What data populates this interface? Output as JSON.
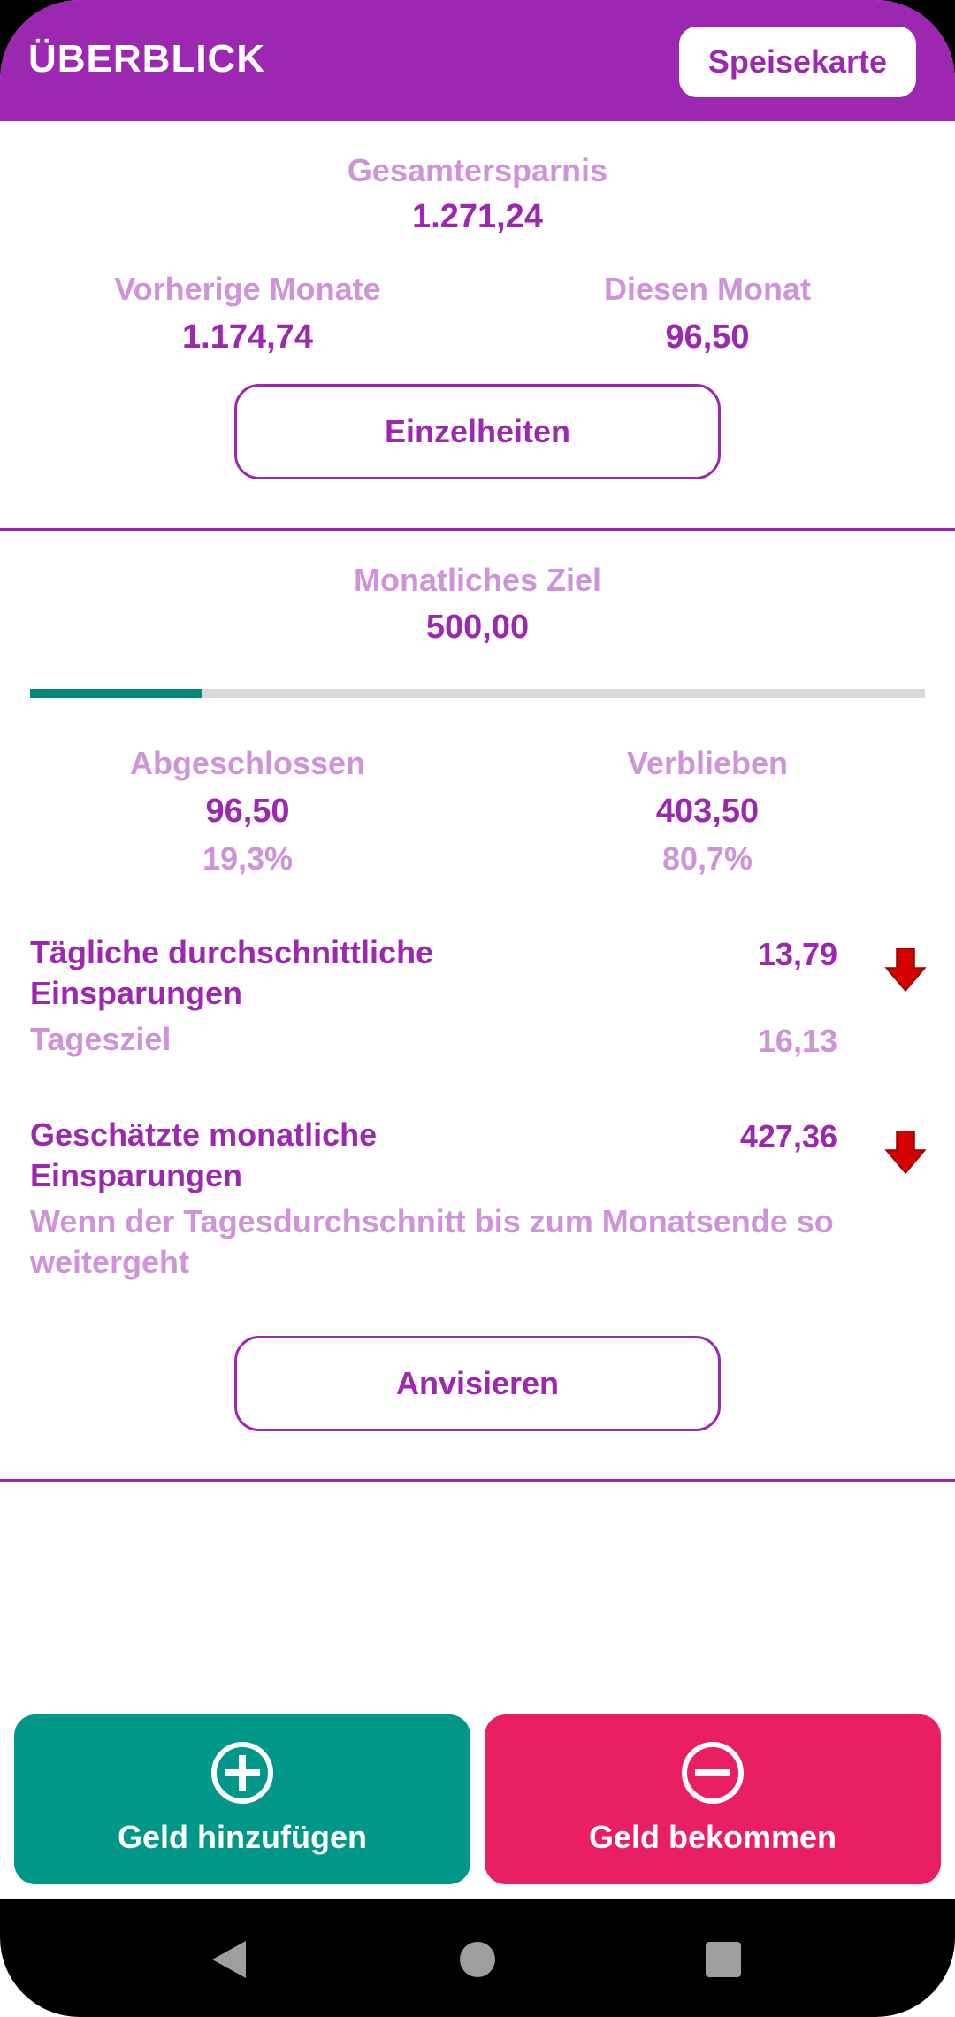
{
  "header": {
    "title": "ÜBERBLICK",
    "menu_label": "Speisekarte",
    "bg_color": "#9c27b0"
  },
  "savings": {
    "total_label": "Gesamtersparnis",
    "total_value": "1.271,24",
    "previous_label": "Vorherige Monate",
    "previous_value": "1.174,74",
    "this_month_label": "Diesen Monat",
    "this_month_value": "96,50",
    "details_button": "Einzelheiten"
  },
  "goal": {
    "label": "Monatliches Ziel",
    "value": "500,00",
    "progress_fraction": 0.193,
    "completed_label": "Abgeschlossen",
    "completed_value": "96,50",
    "completed_percent": "19,3%",
    "remaining_label": "Verblieben",
    "remaining_value": "403,50",
    "remaining_percent": "80,7%"
  },
  "daily": {
    "label": "Tägliche durchschnittliche Einsparungen",
    "value": "13,79",
    "target_label": "Tagesziel",
    "target_value": "16,13",
    "trend_icon": "arrow-down-icon"
  },
  "estimate": {
    "label": "Geschätzte monatliche Einsparungen",
    "value": "427,36",
    "note": "Wenn der Tagesdurchschnitt bis zum Monatsende so weitergeht",
    "trend_icon": "arrow-down-icon",
    "target_button": "Anvisieren"
  },
  "actions": {
    "add_label": "Geld hinzufügen",
    "add_icon": "plus-circle-icon",
    "add_color": "#009688",
    "get_label": "Geld bekommen",
    "get_icon": "minus-circle-icon",
    "get_color": "#e91e63"
  },
  "navbar": {
    "back_icon": "back-triangle-icon",
    "home_icon": "home-circle-icon",
    "recents_icon": "recents-square-icon"
  }
}
